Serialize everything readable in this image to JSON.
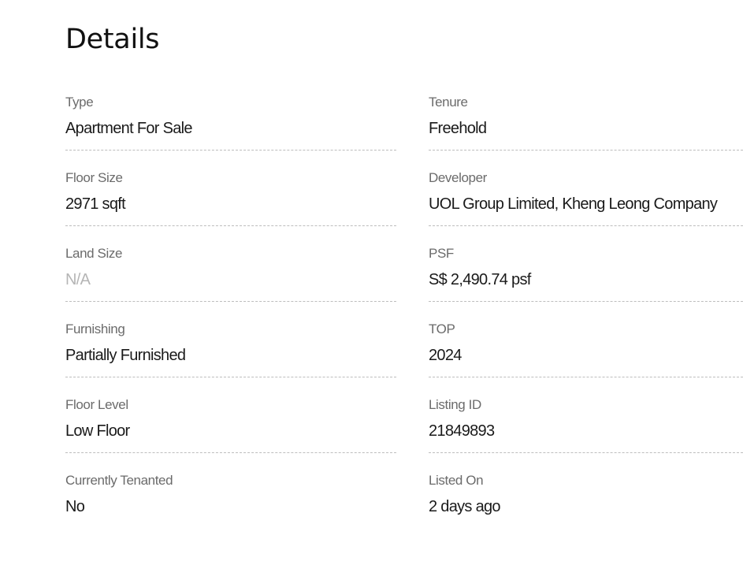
{
  "title": "Details",
  "details": [
    {
      "label": "Type",
      "value": "Apartment For Sale"
    },
    {
      "label": "Tenure",
      "value": "Freehold"
    },
    {
      "label": "Floor Size",
      "value": "2971 sqft"
    },
    {
      "label": "Developer",
      "value": "UOL Group Limited, Kheng Leong Company"
    },
    {
      "label": "Land Size",
      "value": "N/A"
    },
    {
      "label": "PSF",
      "value": "S$ 2,490.74 psf"
    },
    {
      "label": "Furnishing",
      "value": "Partially Furnished"
    },
    {
      "label": "TOP",
      "value": "2024"
    },
    {
      "label": "Floor Level",
      "value": "Low Floor"
    },
    {
      "label": "Listing ID",
      "value": "21849893"
    },
    {
      "label": "Currently Tenanted",
      "value": "No"
    },
    {
      "label": "Listed On",
      "value": "2 days ago"
    }
  ]
}
